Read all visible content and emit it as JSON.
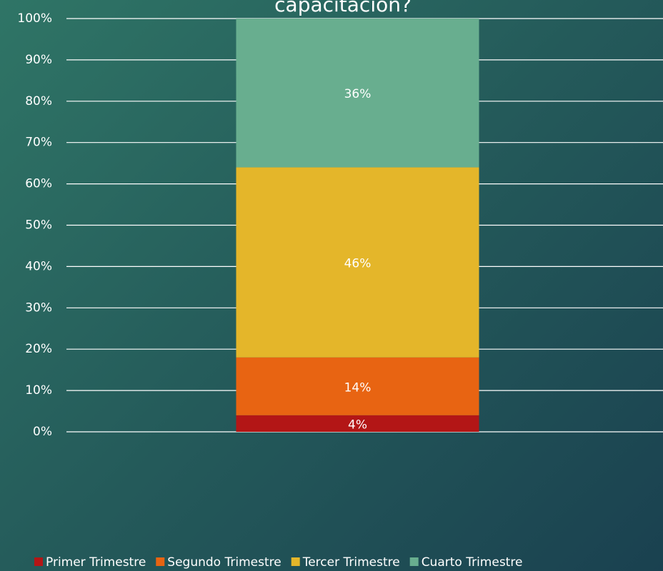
{
  "chart_data": {
    "type": "stacked_bar",
    "title": "capacitación?",
    "categories": [
      null
    ],
    "series": [
      {
        "name": "Primer Trimestre",
        "color": "#b31616",
        "values": [
          4
        ],
        "value_labels": [
          "4%"
        ]
      },
      {
        "name": "Segundo Trimestre",
        "color": "#e86412",
        "values": [
          14
        ],
        "value_labels": [
          "14%"
        ]
      },
      {
        "name": "Tercer Trimestre",
        "color": "#e4b62a",
        "values": [
          46
        ],
        "value_labels": [
          "46%"
        ]
      },
      {
        "name": "Cuarto Trimestre",
        "color": "#68ae8f",
        "values": [
          36
        ],
        "value_labels": [
          "36%"
        ]
      }
    ],
    "ylim": [
      0,
      100
    ],
    "yticks": [
      {
        "value": 0,
        "label": "0%"
      },
      {
        "value": 10,
        "label": "10%"
      },
      {
        "value": 20,
        "label": "20%"
      },
      {
        "value": 30,
        "label": "30%"
      },
      {
        "value": 40,
        "label": "40%"
      },
      {
        "value": 50,
        "label": "50%"
      },
      {
        "value": 60,
        "label": "60%"
      },
      {
        "value": 70,
        "label": "70%"
      },
      {
        "value": 80,
        "label": "80%"
      },
      {
        "value": 90,
        "label": "90%"
      },
      {
        "value": 100,
        "label": "100%"
      }
    ],
    "grid": true,
    "legend": "bottom"
  }
}
